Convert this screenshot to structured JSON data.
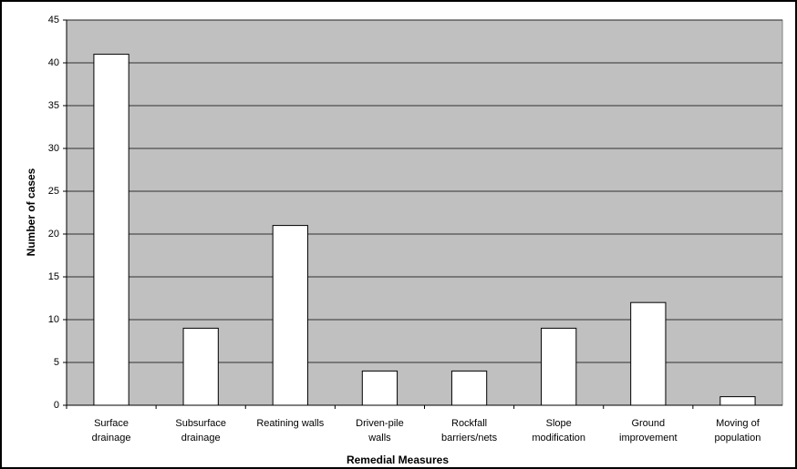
{
  "chart_data": {
    "type": "bar",
    "categories": [
      "Surface\ndrainage",
      "Subsurface\ndrainage",
      "Reatining walls",
      "Driven-pile\nwalls",
      "Rockfall\nbarriers/nets",
      "Slope\nmodification",
      "Ground\nimprovement",
      "Moving of\npopulation"
    ],
    "values": [
      41,
      9,
      21,
      4,
      4,
      9,
      12,
      1
    ],
    "color": "#ffffff",
    "plot_background": "#c0c0c0",
    "xlabel": "Remedial Measures",
    "ylabel": "Number of cases",
    "ylim": [
      0,
      45
    ],
    "yticks": [
      0,
      5,
      10,
      15,
      20,
      25,
      30,
      35,
      40,
      45
    ],
    "grid": true
  }
}
